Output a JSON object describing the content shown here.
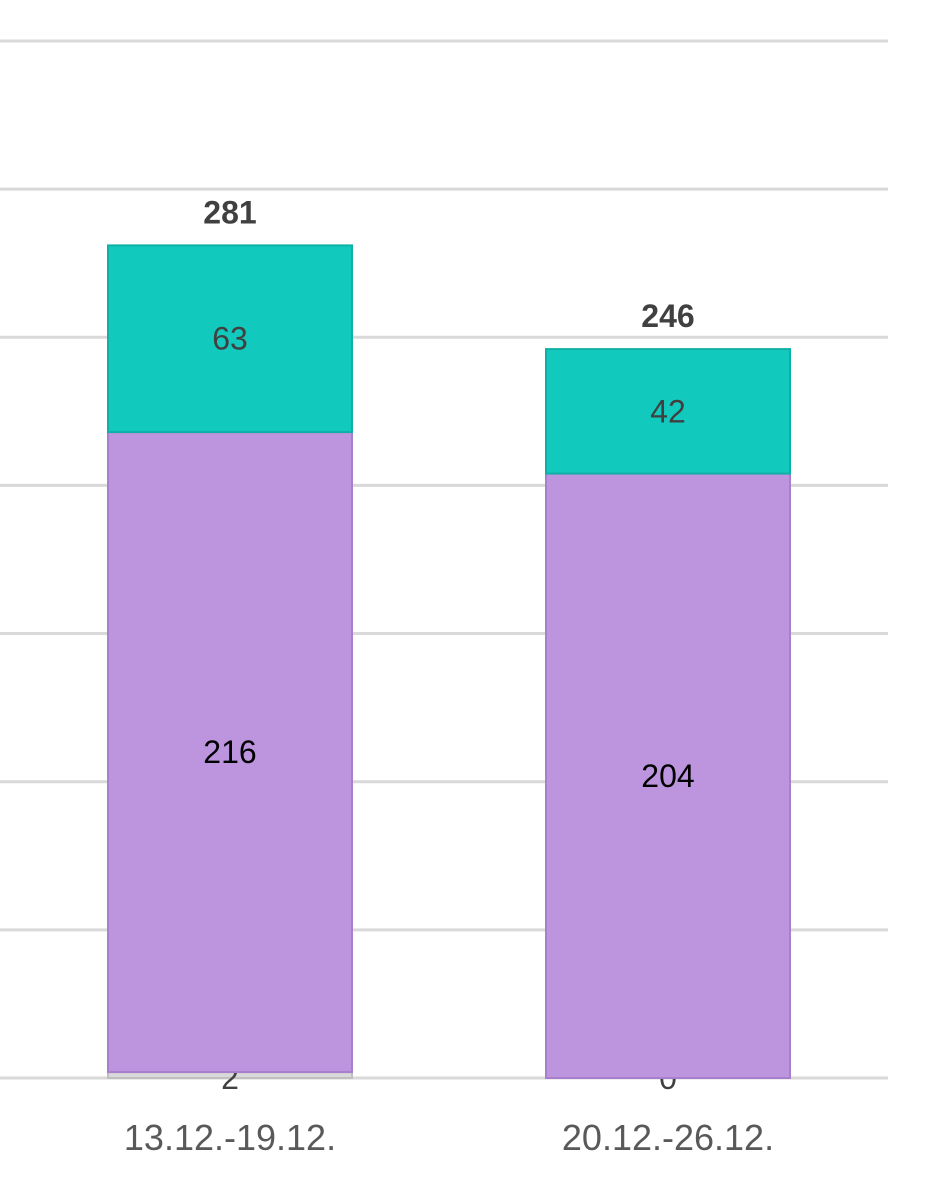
{
  "chart_data": {
    "type": "bar",
    "stacked": true,
    "categories": [
      "13.12.-19.12.",
      "20.12.-26.12."
    ],
    "series": [
      {
        "values": [
          2,
          0
        ],
        "color": "#d9d9d9"
      },
      {
        "values": [
          216,
          204
        ],
        "color": "#bd95df"
      },
      {
        "values": [
          63,
          42
        ],
        "color": "#12c9bd"
      }
    ],
    "totals": [
      281,
      246
    ],
    "ylim": [
      0,
      350
    ],
    "grid": true,
    "label_colors": {
      "purple": "#000000",
      "teal": "#404040",
      "gray": "#404040"
    }
  }
}
